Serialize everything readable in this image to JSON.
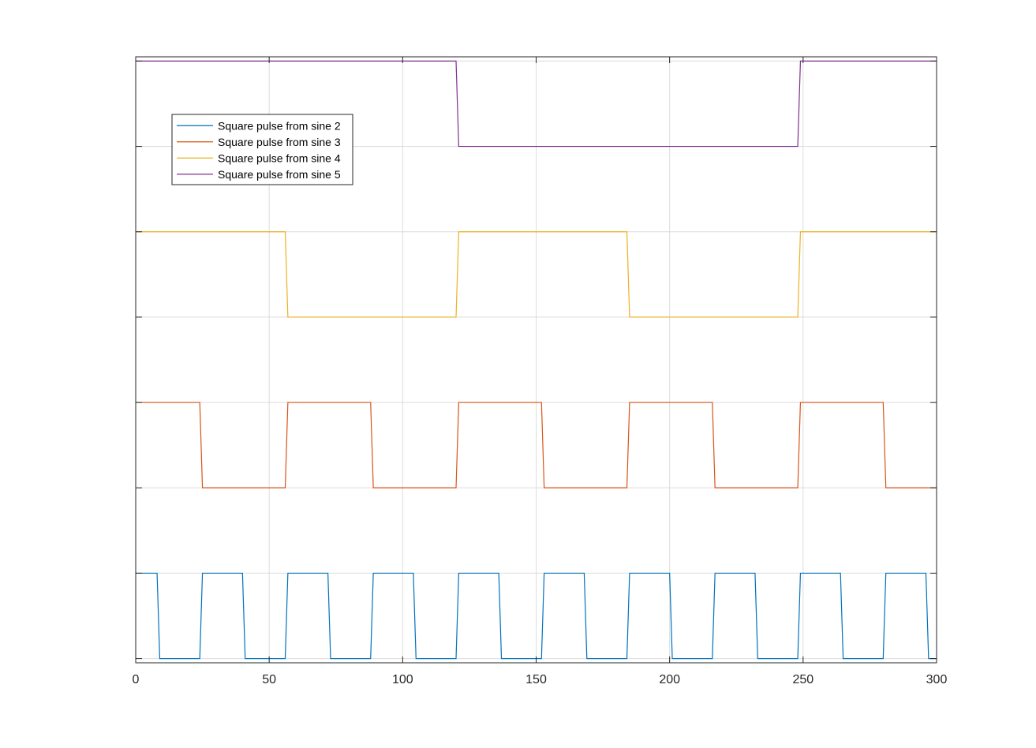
{
  "chart_data": {
    "type": "line",
    "title": "",
    "xlabel": "",
    "ylabel": "",
    "xlim": [
      0,
      300
    ],
    "ylim": [
      -0.05,
      7.05
    ],
    "xticks": [
      0,
      50,
      100,
      150,
      200,
      250,
      300
    ],
    "xtick_labels": [
      "0",
      "50",
      "100",
      "150",
      "200",
      "250",
      "300"
    ],
    "yticks": [
      0,
      1,
      2,
      3,
      4,
      5,
      6,
      7
    ],
    "grid": true,
    "legend_position": "upper-left",
    "series": [
      {
        "name": "Square pulse from sine 2",
        "color": "#0072BD",
        "legend_color": "#0072BD",
        "offset": 0,
        "segments": [
          [
            0,
            1
          ],
          [
            8,
            1
          ],
          [
            9,
            0
          ],
          [
            24,
            0
          ],
          [
            25,
            1
          ],
          [
            40,
            1
          ],
          [
            41,
            0
          ],
          [
            56,
            0
          ],
          [
            57,
            1
          ],
          [
            72,
            1
          ],
          [
            73,
            0
          ],
          [
            88,
            0
          ],
          [
            89,
            1
          ],
          [
            104,
            1
          ],
          [
            105,
            0
          ],
          [
            120,
            0
          ],
          [
            121,
            1
          ],
          [
            136,
            1
          ],
          [
            137,
            0
          ],
          [
            152,
            0
          ],
          [
            153,
            1
          ],
          [
            168,
            1
          ],
          [
            169,
            0
          ],
          [
            184,
            0
          ],
          [
            185,
            1
          ],
          [
            200,
            1
          ],
          [
            201,
            0
          ],
          [
            216,
            0
          ],
          [
            217,
            1
          ],
          [
            232,
            1
          ],
          [
            233,
            0
          ],
          [
            248,
            0
          ],
          [
            249,
            1
          ],
          [
            264,
            1
          ],
          [
            265,
            0
          ],
          [
            280,
            0
          ],
          [
            281,
            1
          ],
          [
            296,
            1
          ],
          [
            297,
            0
          ],
          [
            300,
            0
          ]
        ]
      },
      {
        "name": "Square pulse from sine 3",
        "color": "#D95319",
        "legend_color": "#D95319",
        "offset": 2,
        "segments": [
          [
            0,
            1
          ],
          [
            24,
            1
          ],
          [
            25,
            0
          ],
          [
            56,
            0
          ],
          [
            57,
            1
          ],
          [
            88,
            1
          ],
          [
            89,
            0
          ],
          [
            120,
            0
          ],
          [
            121,
            1
          ],
          [
            152,
            1
          ],
          [
            153,
            0
          ],
          [
            184,
            0
          ],
          [
            185,
            1
          ],
          [
            216,
            1
          ],
          [
            217,
            0
          ],
          [
            248,
            0
          ],
          [
            249,
            1
          ],
          [
            280,
            1
          ],
          [
            281,
            0
          ],
          [
            300,
            0
          ]
        ]
      },
      {
        "name": "Square pulse from sine 4",
        "color": "#EDB120",
        "legend_color": "#EDB120",
        "offset": 4,
        "segments": [
          [
            0,
            1
          ],
          [
            56,
            1
          ],
          [
            57,
            0
          ],
          [
            120,
            0
          ],
          [
            121,
            1
          ],
          [
            184,
            1
          ],
          [
            185,
            0
          ],
          [
            248,
            0
          ],
          [
            249,
            1
          ],
          [
            300,
            1
          ]
        ]
      },
      {
        "name": "Square pulse from sine 5",
        "color": "#7E2F8E",
        "legend_color": "#7E2F8E",
        "offset": 6,
        "segments": [
          [
            0,
            1
          ],
          [
            120,
            1
          ],
          [
            121,
            0
          ],
          [
            248,
            0
          ],
          [
            249,
            1
          ],
          [
            300,
            1
          ]
        ]
      }
    ]
  }
}
